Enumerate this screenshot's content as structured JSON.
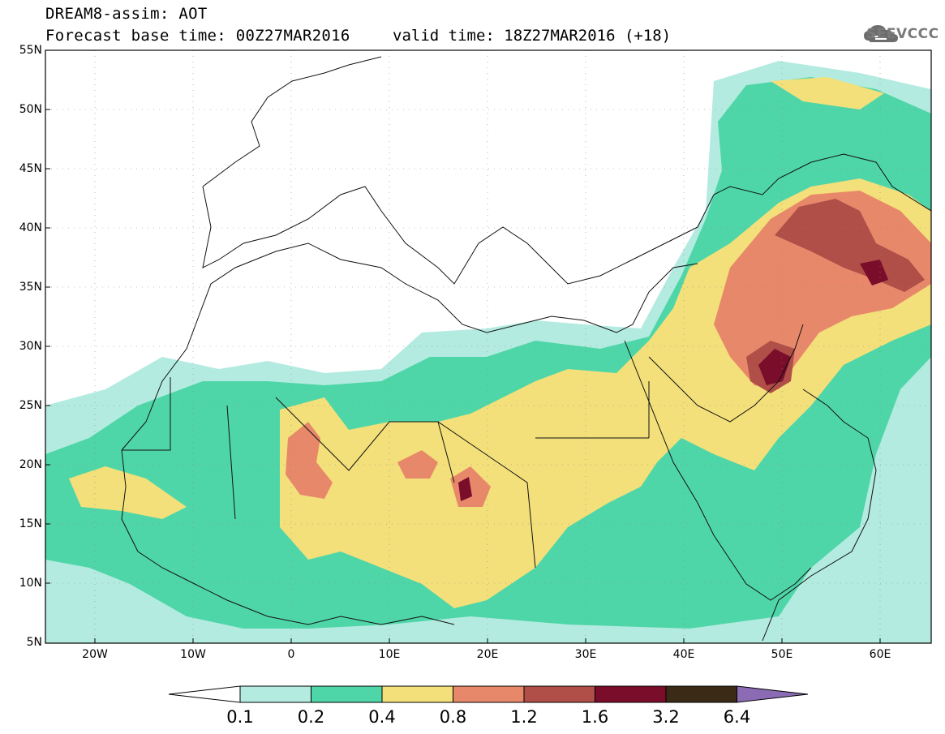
{
  "header": {
    "title": "DREAM8-assim: AOT",
    "base_time": "Forecast base time: 00Z27MAR2016",
    "valid_time": "valid time: 18Z27MAR2016 (+18)",
    "logo_text": "SEEVCCC"
  },
  "map": {
    "variable": "AOT",
    "lon_range": [
      -25,
      65
    ],
    "lat_range": [
      5,
      55
    ],
    "lat_labels": [
      "55N",
      "50N",
      "45N",
      "40N",
      "35N",
      "30N",
      "25N",
      "20N",
      "15N",
      "10N",
      "5N"
    ],
    "lon_labels": [
      "20W",
      "10W",
      "0",
      "10E",
      "20E",
      "30E",
      "40E",
      "50E",
      "60E"
    ],
    "grid": true
  },
  "colorbar": {
    "labels": [
      "0.1",
      "0.2",
      "0.4",
      "0.8",
      "1.2",
      "1.6",
      "3.2",
      "6.4"
    ],
    "colors": {
      "below": "#ffffff",
      "b1": "#b3ebe0",
      "b2": "#4fd6a8",
      "b3": "#f3e07a",
      "b4": "#e8886a",
      "b5": "#b04e48",
      "b6": "#7a0d2a",
      "b7": "#3a2a16",
      "above": "#8c6bb5"
    }
  }
}
